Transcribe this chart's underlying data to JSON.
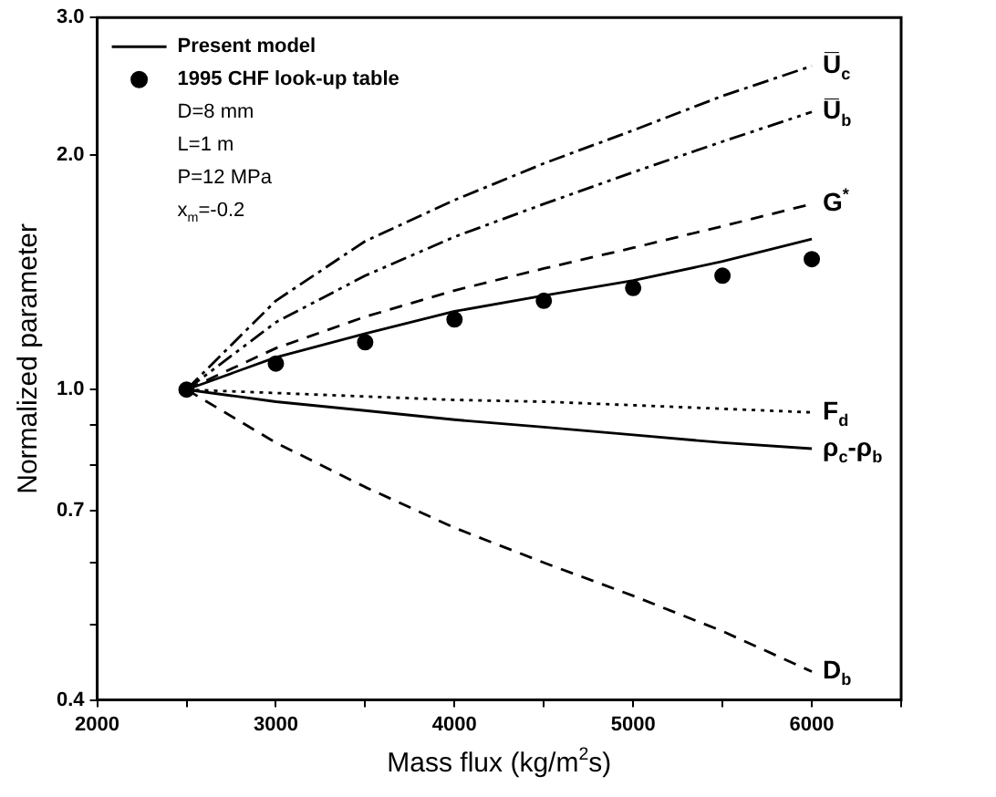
{
  "chart_data": {
    "type": "line",
    "xlabel": "Mass flux (kg/m$^{2}$s)",
    "ylabel": "Normalized parameter",
    "log": "y",
    "grid": false,
    "legend": "top left",
    "marker": "none",
    "x": [
      2500,
      3000,
      3500,
      4000,
      4500,
      5000,
      5500,
      6000
    ],
    "xlim": [
      2000,
      6500
    ],
    "xticks": [
      2000,
      {
        "value": 2500,
        "label": null
      },
      3000,
      {
        "value": 3500,
        "label": null
      },
      4000,
      {
        "value": 4500,
        "label": null
      },
      5000,
      {
        "value": 5500,
        "label": null
      },
      6000,
      {
        "value": 6500,
        "label": null
      }
    ],
    "ylim": [
      0.4,
      3.0
    ],
    "yticks": [
      {
        "value": 0.4,
        "label": "0.4"
      },
      {
        "value": 0.5,
        "label": null
      },
      {
        "value": 0.6,
        "label": null
      },
      {
        "value": 0.7,
        "label": "0.7"
      },
      {
        "value": 0.8,
        "label": null
      },
      {
        "value": 0.9,
        "label": null
      },
      {
        "value": 1,
        "label": "1.0"
      },
      {
        "value": 2,
        "label": "2.0"
      },
      {
        "value": 3,
        "label": "3.0"
      }
    ],
    "series": [
      {
        "name": "Present model",
        "color": "#000000",
        "line_style": "solid",
        "values": [
          1.0,
          1.1,
          1.18,
          1.26,
          1.32,
          1.38,
          1.46,
          1.56
        ]
      },
      {
        "name": "1995 CHF look-up table",
        "type": "scatter",
        "marker": "circle",
        "color": "#000000",
        "values": [
          1.0,
          1.08,
          1.15,
          1.23,
          1.3,
          1.35,
          1.4,
          1.47
        ]
      },
      {
        "name": "U̅$_{c}$",
        "color": "#000000",
        "line_style": "dashdot",
        "values": [
          1.0,
          1.3,
          1.55,
          1.75,
          1.95,
          2.15,
          2.38,
          2.6
        ]
      },
      {
        "name": "U̅$_{b}$",
        "color": "#000000",
        "line_style": "dashdotdot",
        "values": [
          1.0,
          1.22,
          1.4,
          1.57,
          1.73,
          1.9,
          2.08,
          2.27
        ]
      },
      {
        "name": "G$^{*}$",
        "color": "#000000",
        "line_style": "dashed",
        "values": [
          1.0,
          1.13,
          1.24,
          1.34,
          1.43,
          1.52,
          1.62,
          1.73
        ]
      },
      {
        "name": "F$_{d}$",
        "color": "#000000",
        "line_style": "dotted",
        "values": [
          1.0,
          0.99,
          0.98,
          0.97,
          0.965,
          0.955,
          0.945,
          0.935
        ]
      },
      {
        "name": "ρ$_{c}$-ρ$_{b}$",
        "color": "#000000",
        "line_style": "solid",
        "values": [
          1.0,
          0.965,
          0.94,
          0.915,
          0.895,
          0.875,
          0.855,
          0.84
        ]
      },
      {
        "name": "D$_{b}$",
        "color": "#000000",
        "line_style": "dashed",
        "values": [
          1.0,
          0.855,
          0.75,
          0.665,
          0.6,
          0.544,
          0.49,
          0.435
        ]
      }
    ],
    "annotations": [
      "D=8 mm",
      "L=1 m",
      "P=12 MPa",
      "x$_{m}$=-0.2"
    ]
  }
}
